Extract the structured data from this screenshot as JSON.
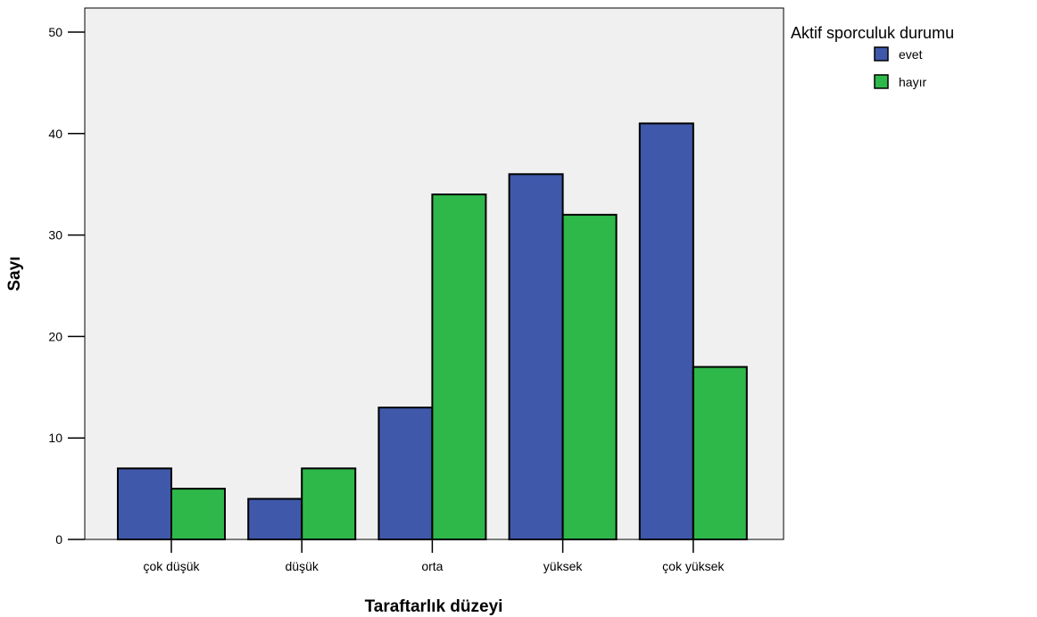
{
  "chart_data": {
    "type": "bar",
    "title": "",
    "xlabel": "Taraftarlık düzeyi",
    "ylabel": "Sayı",
    "categories": [
      "çok düşük",
      "düşük",
      "orta",
      "yüksek",
      "çok yüksek"
    ],
    "series": [
      {
        "name": "evet",
        "color": "#3f58aa",
        "values": [
          7,
          4,
          13,
          36,
          41
        ]
      },
      {
        "name": "hayır",
        "color": "#2eb84a",
        "values": [
          5,
          7,
          34,
          32,
          17
        ]
      }
    ],
    "ylim": [
      0,
      50
    ],
    "yticks": [
      0,
      10,
      20,
      30,
      40,
      50
    ],
    "legend_title": "Aktif sporculuk durumu",
    "legend_position": "top-right",
    "grid": false,
    "plot_background": "#f0f0f0"
  }
}
